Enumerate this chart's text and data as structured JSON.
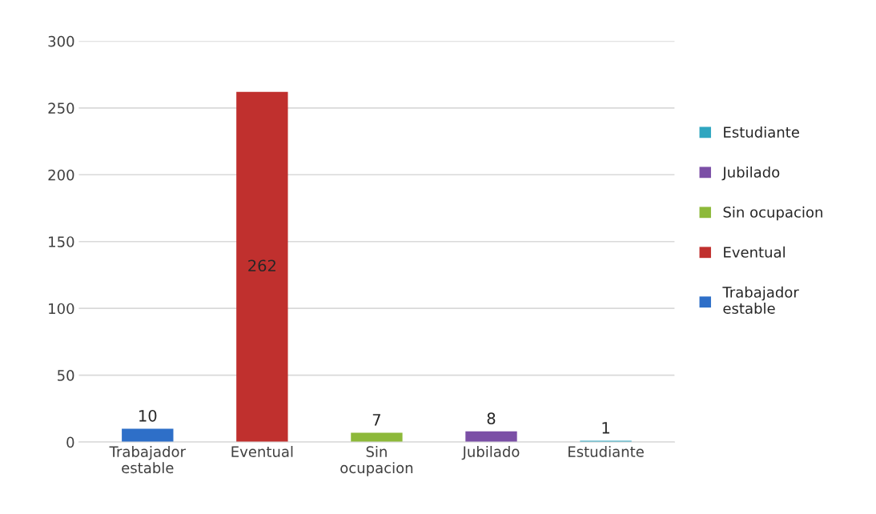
{
  "chart_data": {
    "type": "bar",
    "categories": [
      "Trabajador\nestable",
      "Eventual",
      "Sin\nocupacion",
      "Jubilado",
      "Estudiante"
    ],
    "series": [
      {
        "name": "Trabajador\nestable",
        "color": "#2e6fc8",
        "values": [
          10,
          null,
          null,
          null,
          null
        ]
      },
      {
        "name": "Eventual",
        "color": "#c0302e",
        "values": [
          null,
          262,
          null,
          null,
          null
        ]
      },
      {
        "name": "Sin ocupacion",
        "color": "#8db93a",
        "values": [
          null,
          null,
          7,
          null,
          null
        ]
      },
      {
        "name": "Jubilado",
        "color": "#7b4fa6",
        "values": [
          null,
          null,
          null,
          8,
          null
        ]
      },
      {
        "name": "Estudiante",
        "color": "#2fa6c0",
        "values": [
          null,
          null,
          null,
          null,
          1
        ]
      }
    ],
    "stacked": true,
    "ylim": [
      0,
      300
    ],
    "yticks": [
      0,
      50,
      100,
      150,
      200,
      250,
      300
    ],
    "grid": "y",
    "legend": "right",
    "data_labels": true
  }
}
